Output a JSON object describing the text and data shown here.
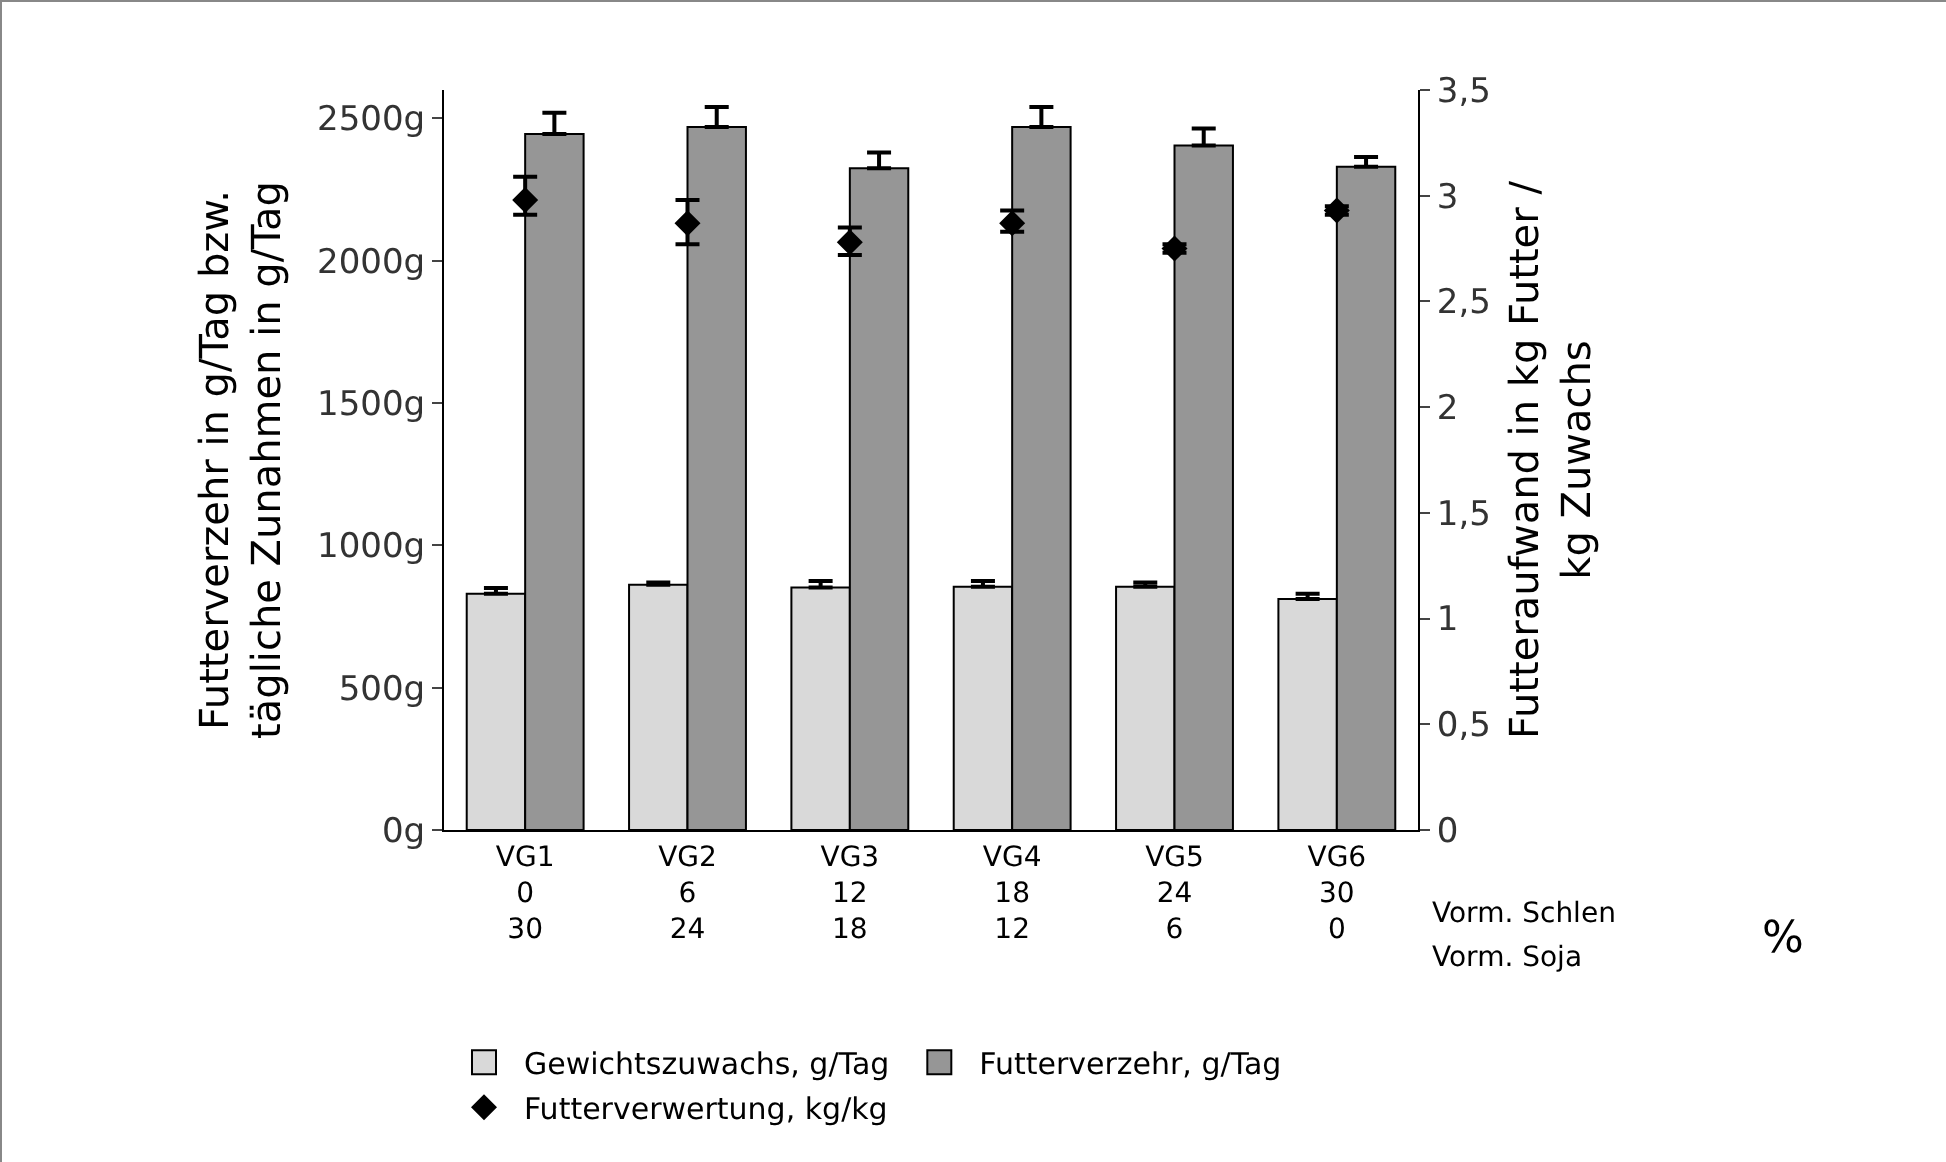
{
  "chart_data": {
    "type": "bar",
    "ylabel": "Futterverzehr in g/Tag bzw.\ntägliche Zunahmen in g/Tag",
    "y2label": "Futteraufwand in kg Futter /\nkg Zuwachs",
    "categories": [
      "VG1\n0\n30",
      "VG2\n6\n24",
      "VG3\n12\n18",
      "VG4\n18\n12",
      "VG5\n24\n6",
      "VG6\n30\n0"
    ],
    "series": [
      {
        "name": "Gewichtszuwachs, g/Tag",
        "color": "#d9d9d9",
        "values": [
          830,
          862,
          852,
          855,
          855,
          812
        ],
        "errors": [
          [
            830,
            850
          ],
          [
            862,
            870
          ],
          [
            852,
            875
          ],
          [
            855,
            875
          ],
          [
            855,
            870
          ],
          [
            812,
            830
          ]
        ]
      },
      {
        "name": "Futterverzehr, g/Tag",
        "color": "#969696",
        "values": [
          2445,
          2470,
          2325,
          2470,
          2405,
          2330
        ],
        "errors": [
          [
            2445,
            2520
          ],
          [
            2470,
            2540
          ],
          [
            2325,
            2380
          ],
          [
            2470,
            2540
          ],
          [
            2405,
            2465
          ],
          [
            2330,
            2365
          ]
        ]
      },
      {
        "name": "Futterverwertung, kg/kg",
        "type": "scatter",
        "axis": "y2",
        "marker": "diamond",
        "color": "#000000",
        "values": [
          2.98,
          2.87,
          2.78,
          2.87,
          2.75,
          2.93
        ],
        "errors": [
          [
            2.91,
            3.09
          ],
          [
            2.77,
            2.98
          ],
          [
            2.72,
            2.85
          ],
          [
            2.83,
            2.93
          ],
          [
            2.73,
            2.77
          ],
          [
            2.91,
            2.95
          ]
        ]
      }
    ],
    "ylim": [
      0,
      2600
    ],
    "yticks": [
      {
        "value": 0,
        "label": "0g"
      },
      {
        "value": 500,
        "label": "500g"
      },
      {
        "value": 1000,
        "label": "1000g"
      },
      {
        "value": 1500,
        "label": "1500g"
      },
      {
        "value": 2000,
        "label": "2000g"
      },
      {
        "value": 2500,
        "label": "2500g"
      }
    ],
    "y2lim": [
      0,
      3.5
    ],
    "y2ticks": [
      {
        "value": 0,
        "label": "0"
      },
      {
        "value": 0.5,
        "label": "0,5"
      },
      {
        "value": 1,
        "label": "1"
      },
      {
        "value": 1.5,
        "label": "1,5"
      },
      {
        "value": 2,
        "label": "2"
      },
      {
        "value": 2.5,
        "label": "2,5"
      },
      {
        "value": 3,
        "label": "3"
      },
      {
        "value": 3.5,
        "label": "3,5"
      }
    ],
    "annotations": [
      "Vorm. Schlen",
      "Vorm. Soja",
      "%"
    ],
    "grid": false,
    "legend": "bottom"
  }
}
